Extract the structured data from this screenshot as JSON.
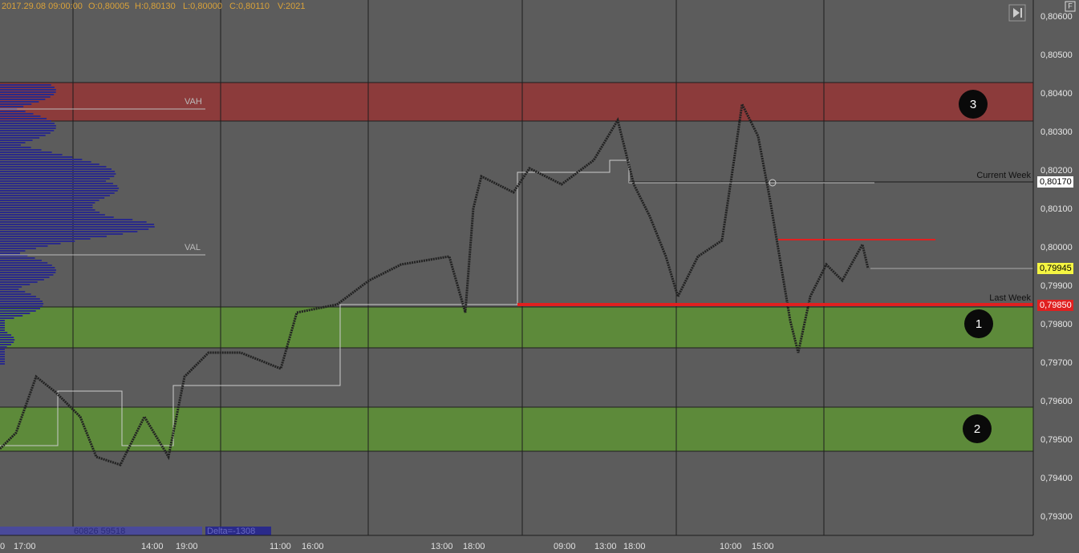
{
  "header": {
    "time": "2017.29.08 09:00:00",
    "open": "O:0,80005",
    "high": "H:0,80130",
    "low": "L:0,80000",
    "close": "C:0,80110",
    "volume": "V:2021",
    "button": "F"
  },
  "price_axis": [
    "0,80600",
    "0,80500",
    "0,80400",
    "0,80300",
    "0,80200",
    "0,80100",
    "0,80000",
    "0,79900",
    "0,79800",
    "0,79700",
    "0,79600",
    "0,79500",
    "0,79400",
    "0,79300"
  ],
  "price_markers": {
    "current_week": "0,80170",
    "last": "0,79945",
    "last_week": "0,79850"
  },
  "labels": {
    "vah": "VAH",
    "val": "VAL",
    "current_week": "Current Week",
    "last_week": "Last Week"
  },
  "zones": [
    "1",
    "2",
    "3"
  ],
  "time_axis": [
    "0",
    "17:00",
    "14:00",
    "19:00",
    "11:00",
    "16:00",
    "13:00",
    "18:00",
    "09:00",
    "13:00",
    "18:00",
    "10:00",
    "15:00"
  ],
  "footer": {
    "volumes": "60826 59518",
    "delta": "Delta=-1308"
  }
}
